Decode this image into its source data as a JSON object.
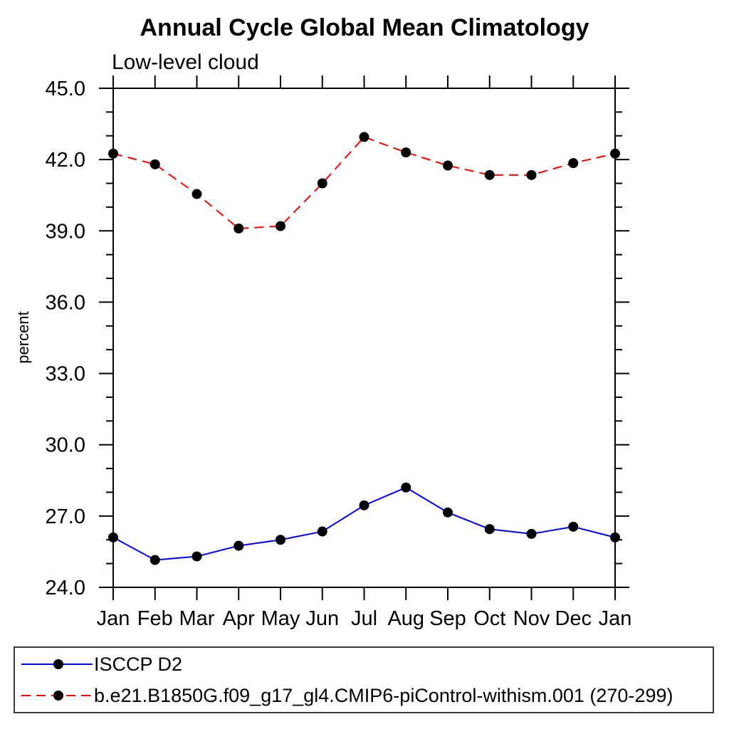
{
  "chart_data": {
    "type": "line",
    "title": "Annual Cycle Global Mean Climatology",
    "subtitle": "Low-level cloud",
    "ylabel": "percent",
    "xlabel": "",
    "categories": [
      "Jan",
      "Feb",
      "Mar",
      "Apr",
      "May",
      "Jun",
      "Jul",
      "Aug",
      "Sep",
      "Oct",
      "Nov",
      "Dec",
      "Jan"
    ],
    "y_axis": {
      "min": 24.0,
      "max": 45.0,
      "major_step": 3.0,
      "minor_step": 1.0,
      "tick_labels": [
        "24.0",
        "27.0",
        "30.0",
        "33.0",
        "36.0",
        "39.0",
        "42.0",
        "45.0"
      ]
    },
    "grid": false,
    "legend_position": "bottom-left-box",
    "series": [
      {
        "name": "ISCCP D2",
        "line_style": "solid",
        "color": "#0000ff",
        "marker": "filled-circle",
        "marker_color": "#000000",
        "values": [
          26.1,
          25.15,
          25.3,
          25.75,
          26.0,
          26.35,
          27.45,
          28.2,
          27.15,
          26.45,
          26.25,
          26.55,
          26.1
        ]
      },
      {
        "name": "b.e21.B1850G.f09_g17_gl4.CMIP6-piControl-withism.001 (270-299)",
        "line_style": "dashed",
        "color": "#ff0000",
        "marker": "filled-circle",
        "marker_color": "#000000",
        "values": [
          42.25,
          41.8,
          40.55,
          39.1,
          39.2,
          41.0,
          42.95,
          42.3,
          41.75,
          41.35,
          41.35,
          41.85,
          42.25
        ]
      }
    ]
  }
}
